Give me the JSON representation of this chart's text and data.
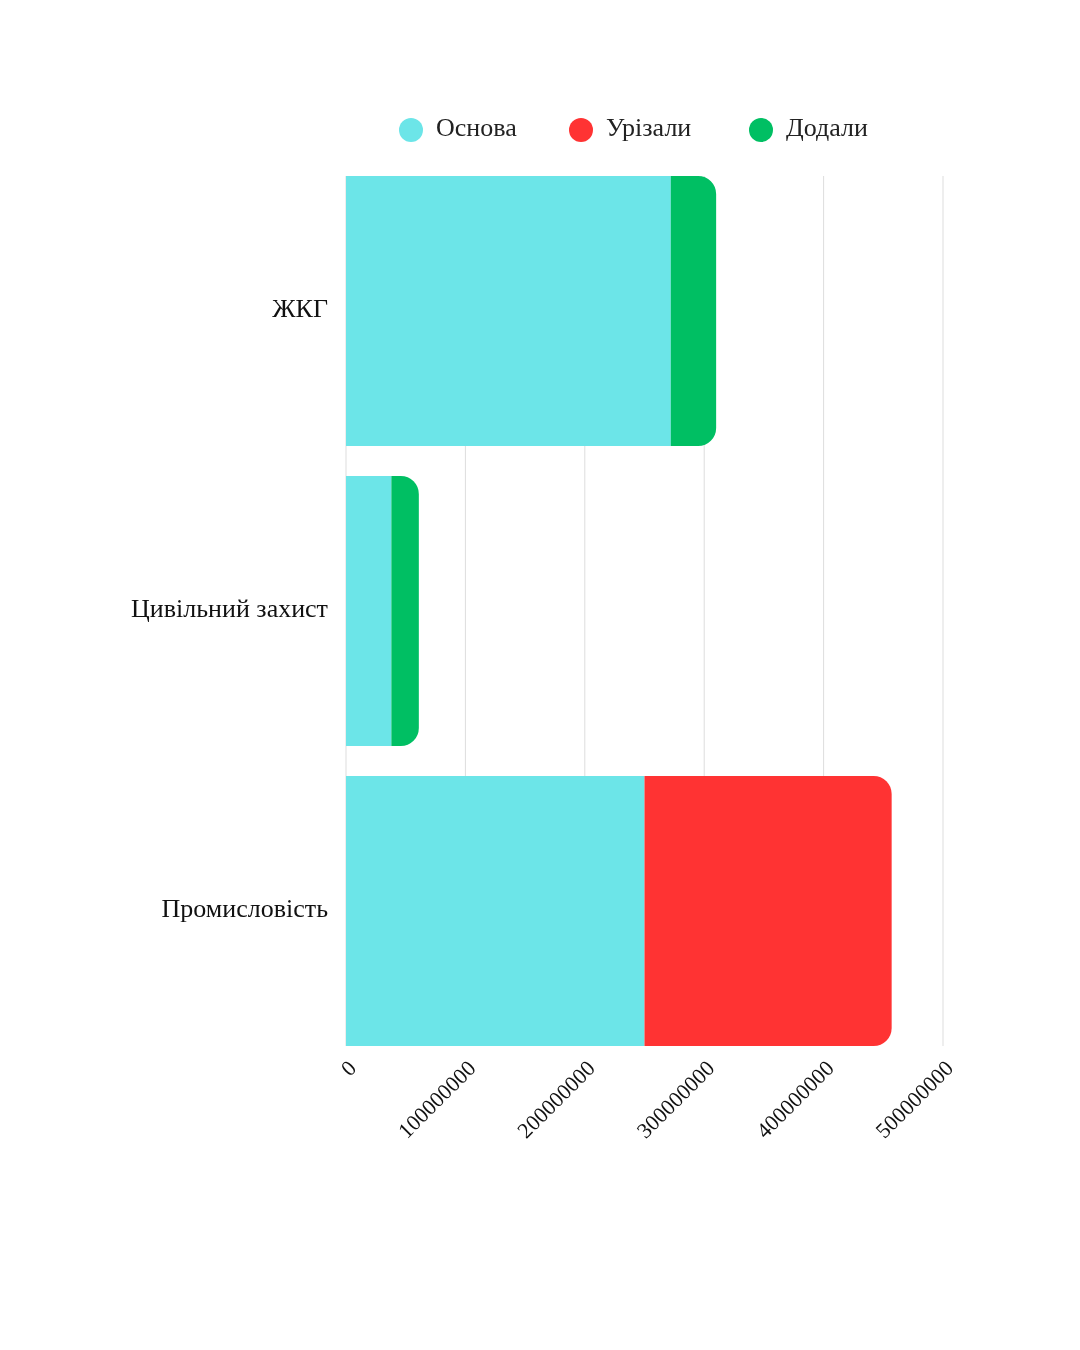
{
  "chart_data": {
    "type": "bar",
    "orientation": "horizontal",
    "stacked": true,
    "categories": [
      "ЖКГ",
      "Цивільний захист",
      "Промисловість"
    ],
    "series": [
      {
        "name": "Основа",
        "color": "#6ce5e8",
        "values": [
          272000000,
          38000000,
          250000000
        ]
      },
      {
        "name": "Урізали",
        "color": "#ff3333",
        "values": [
          null,
          null,
          207000000
        ]
      },
      {
        "name": "Додали",
        "color": "#00bf63",
        "values": [
          38000000,
          23000000,
          null
        ]
      }
    ],
    "xlim": [
      0,
      500000000
    ],
    "xticks": [
      0,
      100000000,
      200000000,
      300000000,
      400000000,
      500000000
    ],
    "grid": "x",
    "legend": "top"
  }
}
